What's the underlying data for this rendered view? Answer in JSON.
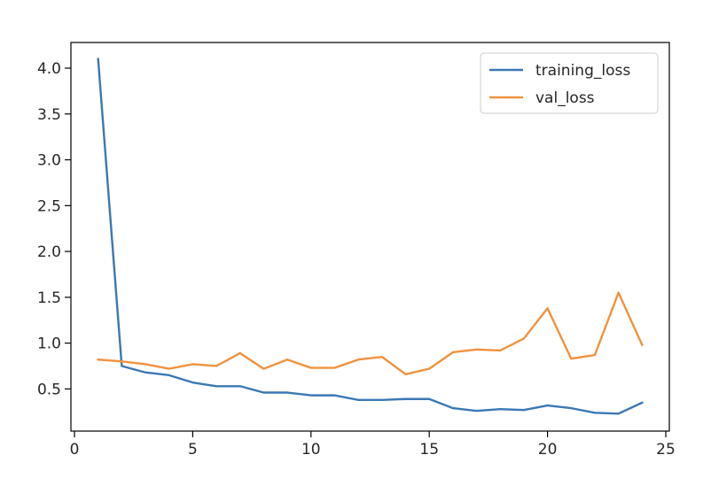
{
  "chart_data": {
    "type": "line",
    "title": "",
    "xlabel": "",
    "ylabel": "",
    "xlim": [
      -0.15,
      25.15
    ],
    "ylim": [
      0.04,
      4.28
    ],
    "xticks": [
      0,
      5,
      10,
      15,
      20,
      25
    ],
    "xtick_labels": [
      "0",
      "5",
      "10",
      "15",
      "20",
      "25"
    ],
    "yticks": [
      0.5,
      1.0,
      1.5,
      2.0,
      2.5,
      3.0,
      3.5,
      4.0
    ],
    "ytick_labels": [
      "0.5",
      "1.0",
      "1.5",
      "2.0",
      "2.5",
      "3.0",
      "3.5",
      "4.0"
    ],
    "grid": false,
    "legend_position": "top-right",
    "x": [
      1,
      2,
      3,
      4,
      5,
      6,
      7,
      8,
      9,
      10,
      11,
      12,
      13,
      14,
      15,
      16,
      17,
      18,
      19,
      20,
      21,
      22,
      23,
      24
    ],
    "series": [
      {
        "name": "training_loss",
        "color": "#3a78b4",
        "values": [
          4.1,
          0.75,
          0.68,
          0.65,
          0.57,
          0.53,
          0.53,
          0.46,
          0.46,
          0.43,
          0.43,
          0.38,
          0.38,
          0.39,
          0.39,
          0.29,
          0.26,
          0.28,
          0.27,
          0.32,
          0.29,
          0.24,
          0.23,
          0.35
        ]
      },
      {
        "name": "val_loss",
        "color": "#f0923e",
        "values": [
          0.82,
          0.8,
          0.77,
          0.72,
          0.77,
          0.75,
          0.89,
          0.72,
          0.82,
          0.73,
          0.73,
          0.82,
          0.85,
          0.66,
          0.72,
          0.9,
          0.93,
          0.92,
          1.05,
          1.38,
          0.83,
          0.87,
          1.55,
          0.98
        ]
      }
    ]
  }
}
